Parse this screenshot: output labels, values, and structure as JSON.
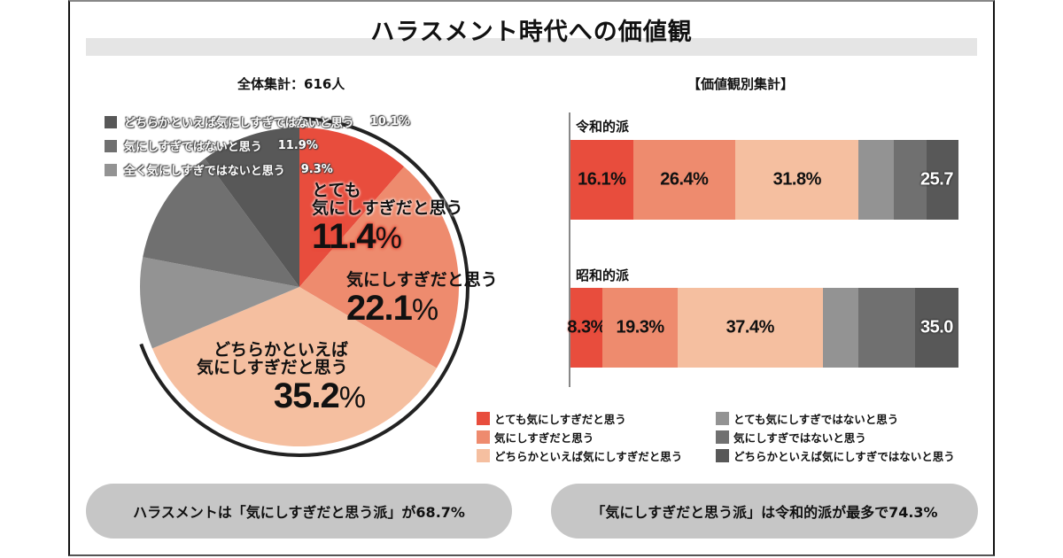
{
  "header": {
    "title": "ハラスメント時代への価値観",
    "left_subtitle": "全体集計：616人",
    "right_subtitle": "【価値観別集計】"
  },
  "colors": {
    "very_yes": "#e84d3d",
    "yes": "#ee8b6e",
    "somewhat_yes": "#f5bfa0",
    "very_no": "#939393",
    "no": "#707070",
    "somewhat_no": "#585858"
  },
  "chart_data": [
    {
      "type": "pie",
      "title": "全体集計：616人",
      "slices": [
        {
          "key": "very_yes",
          "label": "とても気にしすぎだと思う",
          "label_line1": "とても",
          "label_line2": "気にしすぎだと思う",
          "value": 11.4,
          "value_text": "11.4",
          "pct": "%"
        },
        {
          "key": "yes",
          "label": "気にしすぎだと思う",
          "label_line1": "気にしすぎだと思う",
          "value": 22.1,
          "value_text": "22.1",
          "pct": "%"
        },
        {
          "key": "somewhat_yes",
          "label": "どちらかといえば気にしすぎだと思う",
          "label_line1": "どちらかといえば",
          "label_line2": "気にしすぎだと思う",
          "value": 35.2,
          "value_text": "35.2",
          "pct": "%"
        },
        {
          "key": "very_no",
          "label": "全く気にしすぎではないと思う",
          "value": 9.3,
          "value_text": "9.3%"
        },
        {
          "key": "no",
          "label": "気にしすぎではないと思う",
          "value": 11.9,
          "value_text": "11.9%"
        },
        {
          "key": "somewhat_no",
          "label": "どちらかといえば気にしすぎではないと思う",
          "value": 10.1,
          "value_text": "10.1%"
        }
      ],
      "legend_order": [
        "somewhat_no",
        "no",
        "very_no"
      ]
    },
    {
      "type": "bar",
      "stacked": true,
      "orientation": "horizontal",
      "title": "【価値観別集計】",
      "categories": [
        "令和的派",
        "昭和的派"
      ],
      "series": [
        {
          "key": "very_yes",
          "name": "とても気にしすぎだと思う",
          "values": [
            16.1,
            8.3
          ],
          "labels": [
            "16.1%",
            "8.3%"
          ]
        },
        {
          "key": "yes",
          "name": "気にしすぎだと思う",
          "values": [
            26.4,
            19.3
          ],
          "labels": [
            "26.4%",
            "19.3%"
          ]
        },
        {
          "key": "somewhat_yes",
          "name": "どちらかといえば気にしすぎだと思う",
          "values": [
            31.8,
            37.4
          ],
          "labels": [
            "31.8%",
            "37.4%"
          ]
        },
        {
          "key": "very_no",
          "name": "とても気にしすぎではないと思う",
          "values": [
            9.1,
            9.1
          ]
        },
        {
          "key": "no",
          "name": "気にしすぎではないと思う",
          "values": [
            8.3,
            14.7
          ]
        },
        {
          "key": "somewhat_no",
          "name": "どちらかといえば気にしすぎではないと思う",
          "values": [
            8.3,
            11.2
          ]
        }
      ],
      "gray_total_labels": [
        "25.7",
        "35.0"
      ],
      "xlim": [
        0,
        100
      ]
    }
  ],
  "bar_legend": {
    "left": [
      {
        "key": "very_yes",
        "label": "とても気にしすぎだと思う"
      },
      {
        "key": "yes",
        "label": "気にしすぎだと思う"
      },
      {
        "key": "somewhat_yes",
        "label": "どちらかといえば気にしすぎだと思う"
      }
    ],
    "right": [
      {
        "key": "very_no",
        "label": "とても気にしすぎではないと思う"
      },
      {
        "key": "no",
        "label": "気にしすぎではないと思う"
      },
      {
        "key": "somewhat_no",
        "label": "どちらかといえば気にしすぎではないと思う"
      }
    ]
  },
  "footer": {
    "left_pill": "ハラスメントは「気にしすぎだと思う派」が68.7%",
    "right_pill": "「気にしすぎだと思う派」は令和的派が最多で74.3%"
  }
}
